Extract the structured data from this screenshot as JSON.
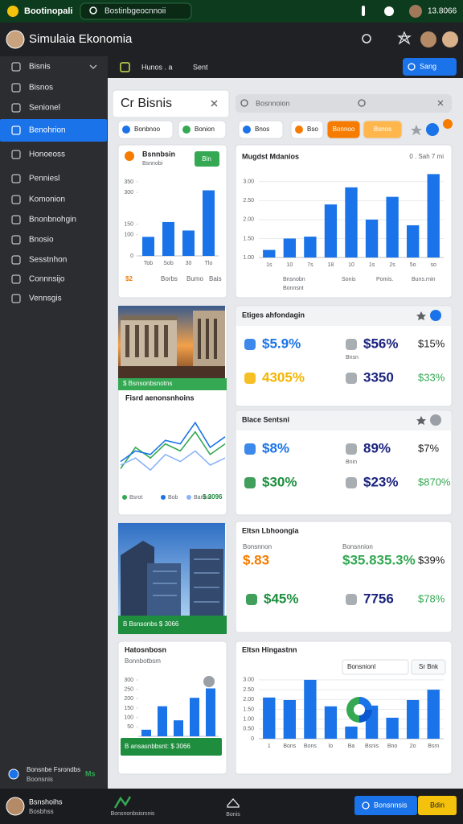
{
  "status_bar": {
    "app": "Bootinopali",
    "search": "Bostinbgeocnnoii",
    "time": "13.8066"
  },
  "header": {
    "title": "Simulaia Ekonomia"
  },
  "sidebar": {
    "items": [
      "Bisnis",
      "Bisnos",
      "Senionel",
      "Benohrion",
      "Honoeoss",
      "Penniesl",
      "Komonion",
      "Bnonbnohgin",
      "Bnosio",
      "Sesstnhon",
      "Connnsijo",
      "Vennsgis"
    ],
    "active": 3,
    "footer": {
      "name": "Bonsnbe Fsrondbs",
      "sub": "Boonsnis",
      "badge": "Ms"
    }
  },
  "toolbar": {
    "tab": "Hunos . a",
    "sort": "Sent",
    "button": "Sang"
  },
  "panel": {
    "title": "Cr Bisnis",
    "search": "Bosnnoion"
  },
  "chips": [
    {
      "text": "Bonbnoo",
      "fill": "#ffffff"
    },
    {
      "text": "Bonion",
      "fill": "#ffffff"
    },
    {
      "text": "Bnos",
      "fill": "#ffffff"
    },
    {
      "text": "Bso",
      "fill": "#ffffff"
    },
    {
      "text": "Bonnoo",
      "fill": "#f57c00"
    },
    {
      "text": "Bsnos",
      "fill": "#ffb74d"
    }
  ],
  "chart_data": [
    {
      "type": "bar",
      "title": "Bsnnbsin",
      "categories": [
        "Tob",
        "Sob",
        "30",
        "Tlo"
      ],
      "values": [
        90,
        160,
        120,
        310
      ],
      "color": "#1a73e8",
      "ylim": [
        0,
        350
      ],
      "yticks": [
        0,
        100,
        150,
        300,
        350
      ],
      "grid": false
    },
    {
      "type": "bar",
      "title": "Mugdst Mdanios",
      "categories": [
        "1s",
        "10",
        "7s",
        "18",
        "10",
        "1s",
        "2s",
        "5o",
        "so"
      ],
      "values": [
        1.2,
        1.5,
        1.55,
        2.4,
        2.85,
        2.0,
        2.6,
        1.85,
        3.2
      ],
      "color": "#1a73e8",
      "ylim": [
        1,
        3.25
      ],
      "yticks": [
        {
          "value": 1,
          "label": "1.00"
        },
        {
          "value": 1.5,
          "label": "1.50"
        },
        {
          "value": 2,
          "label": "2.00"
        },
        {
          "value": 2.5,
          "label": "2.50"
        },
        {
          "value": 3,
          "label": "3.00"
        }
      ],
      "grid": true
    },
    {
      "type": "line",
      "title": "Fisrd aenonsnhoins",
      "categories": [
        null,
        null,
        null,
        null,
        null,
        null,
        null,
        null
      ],
      "ylim": [
        0,
        100
      ],
      "series": [
        {
          "name": "Bsrot",
          "color": "#34a853",
          "values": [
            20,
            50,
            35,
            55,
            45,
            72,
            40,
            55
          ]
        },
        {
          "name": "Bob",
          "color": "#1a73e8",
          "values": [
            30,
            45,
            40,
            60,
            55,
            85,
            50,
            65
          ]
        },
        {
          "name": "Bansot",
          "color": "#8ab4f8",
          "values": [
            25,
            35,
            18,
            40,
            30,
            45,
            25,
            35
          ]
        }
      ]
    },
    {
      "type": "bar",
      "title": "Hatosnbosn",
      "categories": [
        null,
        null,
        null,
        null,
        null
      ],
      "values": [
        35,
        160,
        85,
        205,
        255
      ],
      "color": "#1a73e8",
      "ylim": [
        0,
        300
      ],
      "yticks": [
        50,
        100,
        150,
        200,
        250,
        300
      ],
      "grid": false
    },
    {
      "type": "bar",
      "title": "Eltsn Hingastnn",
      "categories": [
        "1",
        "Bons",
        "Bons",
        "lo",
        "Ba",
        "Bsnis",
        "Bno",
        "2o",
        "Bsm"
      ],
      "values": [
        2.1,
        1.97,
        3.0,
        1.65,
        0.62,
        1.69,
        1.07,
        1.97,
        2.5
      ],
      "color": "#1a73e8",
      "ylim": [
        0,
        3.2
      ],
      "yticks": [
        0,
        {
          "value": 0.5,
          "label": "0.50"
        },
        {
          "value": 1,
          "label": "1.00"
        },
        {
          "value": 1.5,
          "label": "1.50"
        },
        {
          "value": 2,
          "label": "2.00"
        },
        {
          "value": 2.5,
          "label": "2.50"
        },
        {
          "value": 3,
          "label": "3.00"
        }
      ],
      "grid": true
    }
  ],
  "card_texts": {
    "small_button": "Bin",
    "small_sub": "Bsnnobi",
    "small_foot": [
      "$2",
      "Borbs",
      "Bumo",
      "Bais"
    ],
    "big_sub": "0 . Sah 7 mi",
    "big_foot": [
      "Bnsnobn",
      "Bonnsnt",
      "Sonis",
      "Pomis.",
      "Buns.rnin"
    ],
    "image1_caption": "$ Bsnsonbsnotns",
    "line_total": "$ 3096",
    "image2_caption": "B Bsnsonbs $ 3066",
    "bl_sub": "Bonnbotbsm",
    "bl_banner": "B ansasnbbsnt: $ 3066",
    "br_select": "Bonsnionl",
    "br_button": "Sr Bnk"
  },
  "stats": [
    {
      "title": "Etiges ahfondagin",
      "note": "Bnsn",
      "rows": [
        [
          {
            "text": "$5.9%",
            "color": "#1a73e8"
          },
          {
            "text": "$56%",
            "color": "#1a237e"
          },
          {
            "text": "$15%",
            "color": "#202124"
          }
        ],
        [
          {
            "text": "4305%",
            "color": "#f4b400"
          },
          {
            "text": "3350",
            "color": "#1a237e"
          },
          {
            "text": "$33%",
            "color": "#34a853"
          }
        ]
      ]
    },
    {
      "title": "Blace Sentsni",
      "note": "Bnin",
      "rows": [
        [
          {
            "text": "$8%",
            "color": "#1a73e8"
          },
          {
            "text": "89%",
            "color": "#1a237e"
          },
          {
            "text": "$7%",
            "color": "#202124"
          }
        ],
        [
          {
            "text": "$30%",
            "color": "#1e8e3e"
          },
          {
            "text": "$23%",
            "color": "#1a237e"
          },
          {
            "text": "$870%",
            "color": "#34a853"
          }
        ]
      ]
    },
    {
      "title": "Eltsn Lbhoongia",
      "labels": [
        "Bonsnnon",
        "Bonsnnion"
      ],
      "rows": [
        [
          {
            "text": "$.83",
            "color": "#f57c00"
          },
          {
            "text": "$35.835.3%",
            "color": "#34a853"
          },
          {
            "text": "$39%",
            "color": "#202124"
          }
        ],
        [
          {
            "text": "$45%",
            "color": "#1e8e3e"
          },
          {
            "text": "7756",
            "color": "#1a237e"
          },
          {
            "text": "$78%",
            "color": "#34a853"
          }
        ]
      ]
    }
  ],
  "bottom_bar": {
    "name": "Bsnshoihs",
    "sub": "Bosbhss",
    "center": "Bonsnonbsisrsnis",
    "home": "Bonis",
    "button1": "Bonsnnsis",
    "button2": "Bdin"
  }
}
